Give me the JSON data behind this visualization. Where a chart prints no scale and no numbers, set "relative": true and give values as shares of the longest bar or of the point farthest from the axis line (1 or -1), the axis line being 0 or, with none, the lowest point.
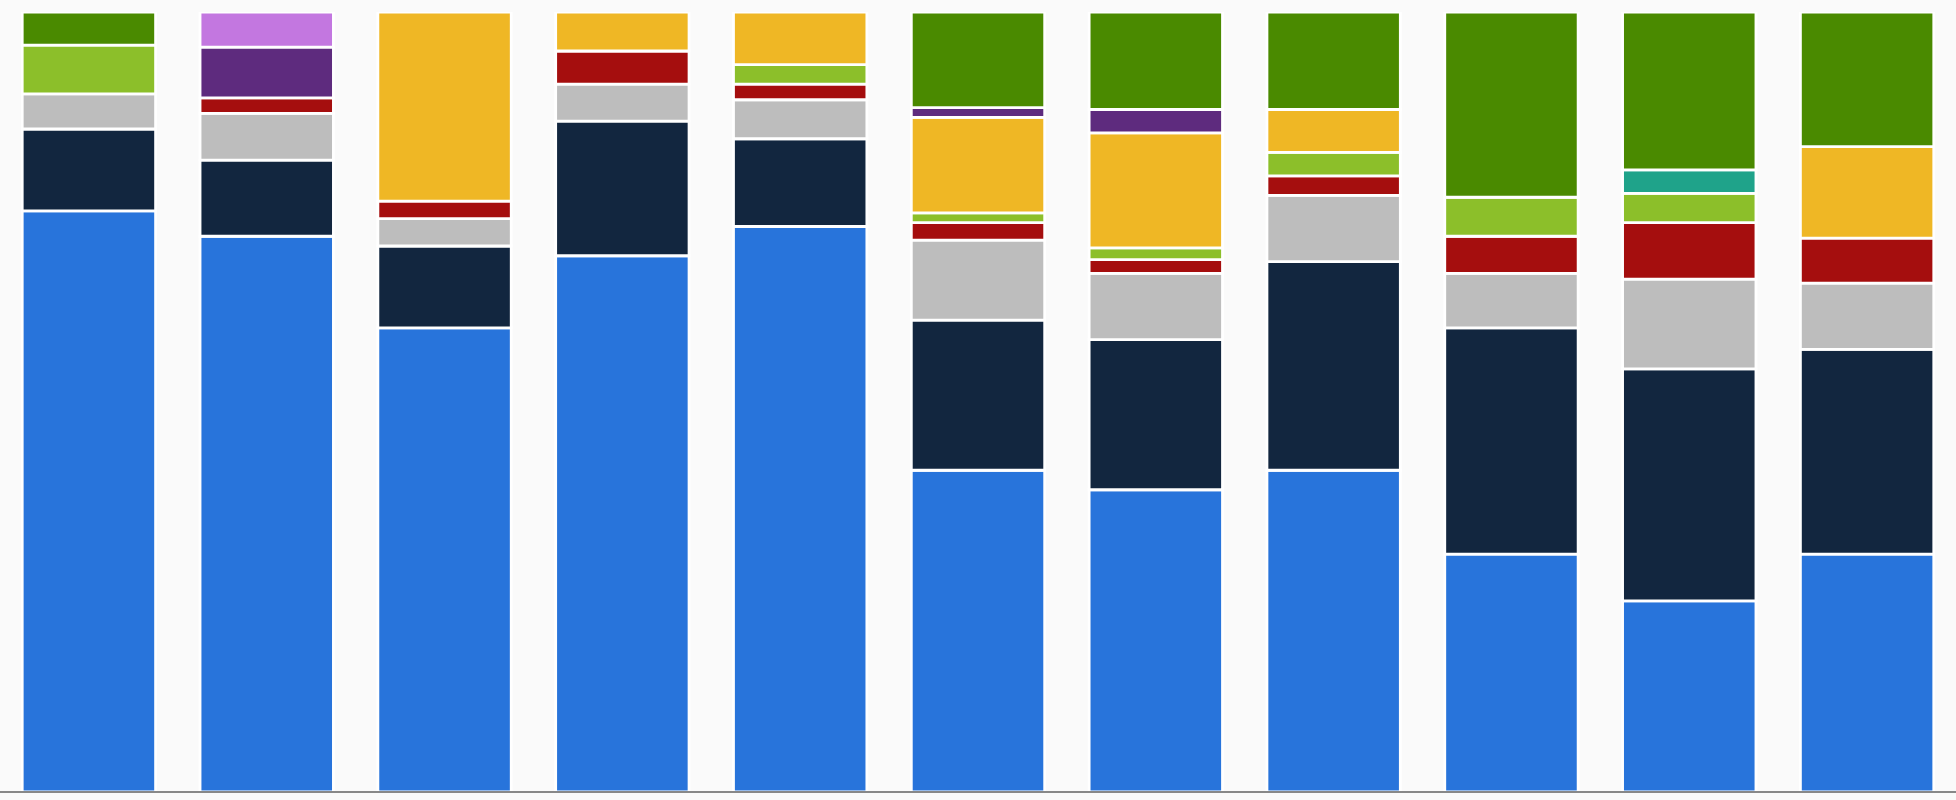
{
  "chart_data": {
    "type": "bar",
    "stacked": true,
    "relative": true,
    "categories": [
      null,
      null,
      null,
      null,
      null,
      null,
      null,
      null,
      null,
      null,
      null
    ],
    "series": [
      {
        "color": "#2874db",
        "values": [
          0.745,
          0.7125,
          0.595,
          0.6875,
          0.725,
          0.4125,
          0.3875,
          0.4125,
          0.305,
          0.245,
          0.305
        ]
      },
      {
        "color": "#12263f",
        "values": [
          0.105,
          0.0975,
          0.105,
          0.1725,
          0.1125,
          0.1925,
          0.1925,
          0.2675,
          0.29,
          0.2975,
          0.2625
        ]
      },
      {
        "color": "#bdbdbd",
        "values": [
          0.045,
          0.06,
          0.035,
          0.0475,
          0.05,
          0.1025,
          0.085,
          0.085,
          0.07,
          0.115,
          0.085
        ]
      },
      {
        "color": "#a50e0e",
        "values": [
          null,
          0.02,
          0.0225,
          0.0425,
          0.02,
          0.0225,
          0.0175,
          0.025,
          0.0475,
          0.0725,
          0.0575
        ]
      },
      {
        "color": "#8cbf2a",
        "values": [
          0.0625,
          null,
          null,
          null,
          0.025,
          0.0125,
          0.015,
          0.03,
          0.05,
          0.0375,
          null
        ]
      },
      {
        "color": "#1fa38a",
        "values": [
          null,
          null,
          null,
          null,
          null,
          null,
          null,
          null,
          null,
          0.03,
          null
        ]
      },
      {
        "color": "#efb725",
        "values": [
          null,
          null,
          0.2425,
          0.05,
          0.0675,
          0.1225,
          0.1475,
          0.055,
          null,
          null,
          0.1175
        ]
      },
      {
        "color": "#5e2b7e",
        "values": [
          null,
          0.065,
          null,
          null,
          null,
          0.0125,
          0.03,
          null,
          null,
          null,
          null
        ]
      },
      {
        "color": "#c377e0",
        "values": [
          null,
          0.045,
          null,
          null,
          null,
          null,
          null,
          null,
          null,
          null,
          null
        ]
      },
      {
        "color": "#4a8a00",
        "values": [
          0.0425,
          null,
          null,
          null,
          null,
          0.1225,
          0.125,
          0.125,
          0.2375,
          0.2025,
          0.1725
        ]
      }
    ]
  }
}
